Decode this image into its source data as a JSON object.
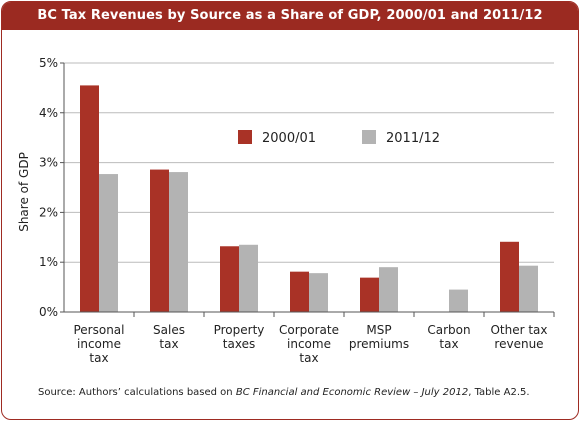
{
  "chart_data": {
    "type": "bar",
    "title": "BC Tax Revenues by Source as a Share of GDP, 2000/01 and 2011/12",
    "ylabel": "Share of GDP",
    "xlabel": "",
    "ylim": [
      0,
      5
    ],
    "yticks": [
      "0%",
      "1%",
      "2%",
      "3%",
      "4%",
      "5%"
    ],
    "ytick_values": [
      0,
      1,
      2,
      3,
      4,
      5
    ],
    "grid": true,
    "legend_position": "top-center",
    "categories": [
      [
        "Personal",
        "income",
        "tax"
      ],
      [
        "Sales",
        "tax"
      ],
      [
        "Property",
        "taxes"
      ],
      [
        "Corporate",
        "income",
        "tax"
      ],
      [
        "MSP",
        "premiums"
      ],
      [
        "Carbon",
        "tax"
      ],
      [
        "Other tax",
        "revenue"
      ]
    ],
    "series": [
      {
        "name": "2000/01",
        "color": "#a93226",
        "values": [
          4.55,
          2.86,
          1.32,
          0.81,
          0.69,
          null,
          1.41
        ]
      },
      {
        "name": "2011/12",
        "color": "#b3b3b3",
        "values": [
          2.77,
          2.81,
          1.35,
          0.78,
          0.9,
          0.45,
          0.93
        ]
      }
    ]
  },
  "source": {
    "prefix": "Source: Authors’ calculations based on ",
    "italic": "BC Financial and Economic Review – July 2012",
    "suffix": ", Table A2.5."
  },
  "colors": {
    "frame": "#9e2b22",
    "title_bar": "#9b2a21",
    "axis": "#555555",
    "grid": "#bbbbbb"
  }
}
